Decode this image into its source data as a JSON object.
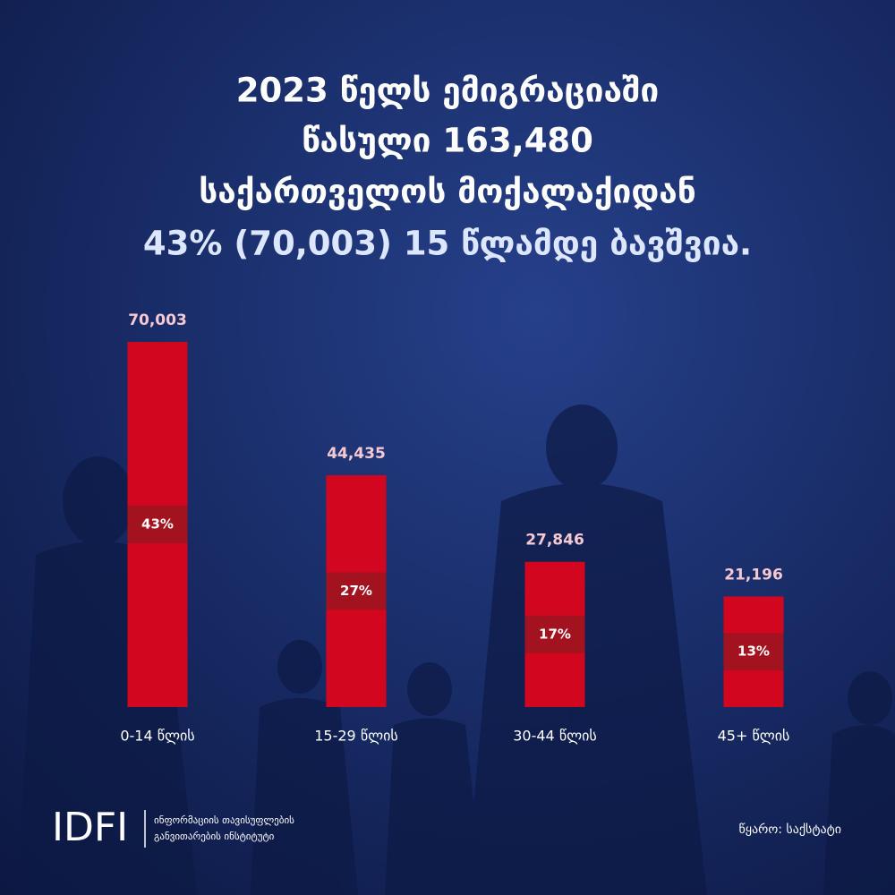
{
  "chart_data": {
    "type": "bar",
    "title": [
      "2023 წელს ემიგრაციაში",
      "წასული 163,480",
      "საქართველოს მოქალაქიდან"
    ],
    "subtitle": "43% (70,003) 15 წლამდე ბავშვია.",
    "categories": [
      "0-14 წლის",
      "15-29 წლის",
      "30-44 წლის",
      "45+ წლის"
    ],
    "values": [
      70003,
      44435,
      27846,
      21196
    ],
    "value_labels": [
      "70,003",
      "44,435",
      "27,846",
      "21,196"
    ],
    "shares": [
      43,
      27,
      17,
      13
    ],
    "share_labels": [
      "43%",
      "27%",
      "17%",
      "13%"
    ],
    "color": "#d3061f",
    "share_color": "#a3121f"
  },
  "footer": {
    "logo": "IDFI",
    "org_name": [
      "ინფორმაციის თავისუფლების",
      "განვითარების ინსტიტუტი"
    ],
    "source": "წყარო: საქსტატი"
  }
}
